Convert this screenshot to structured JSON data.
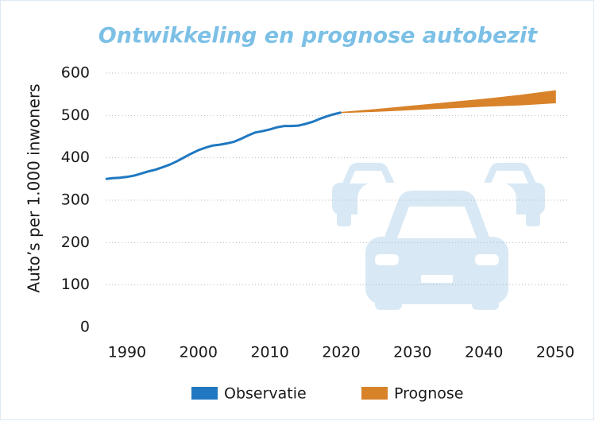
{
  "chart_data": {
    "type": "line",
    "title": "Ontwikkeling en prognose autobezit",
    "y_label": "Auto’s per 1.000 inwoners",
    "xlim": [
      1987,
      2052
    ],
    "xticks": [
      1990,
      2000,
      2010,
      2020,
      2030,
      2040,
      2050
    ],
    "ylim": [
      0,
      600
    ],
    "yticks": [
      0,
      100,
      200,
      300,
      400,
      500,
      600
    ],
    "grid": true,
    "series": [
      {
        "name": "Observatie",
        "type": "line",
        "color": "#1f78c1",
        "x": [
          1987,
          1988,
          1989,
          1990,
          1991,
          1992,
          1993,
          1994,
          1995,
          1996,
          1997,
          1998,
          1999,
          2000,
          2001,
          2002,
          2003,
          2004,
          2005,
          2006,
          2007,
          2008,
          2009,
          2010,
          2011,
          2012,
          2013,
          2014,
          2015,
          2016,
          2017,
          2018,
          2019,
          2020
        ],
        "values": [
          350,
          352,
          353,
          355,
          358,
          363,
          368,
          372,
          378,
          384,
          392,
          401,
          410,
          418,
          424,
          429,
          431,
          434,
          438,
          445,
          453,
          460,
          463,
          467,
          472,
          475,
          475,
          476,
          480,
          485,
          492,
          498,
          503,
          507
        ]
      },
      {
        "name": "Prognose",
        "type": "band",
        "color": "#d8822a",
        "x": [
          2020,
          2025,
          2030,
          2035,
          2040,
          2045,
          2050
        ],
        "low": [
          507,
          510,
          514,
          518,
          522,
          525,
          530
        ],
        "high": [
          507,
          514,
          522,
          530,
          538,
          547,
          558
        ]
      }
    ]
  }
}
